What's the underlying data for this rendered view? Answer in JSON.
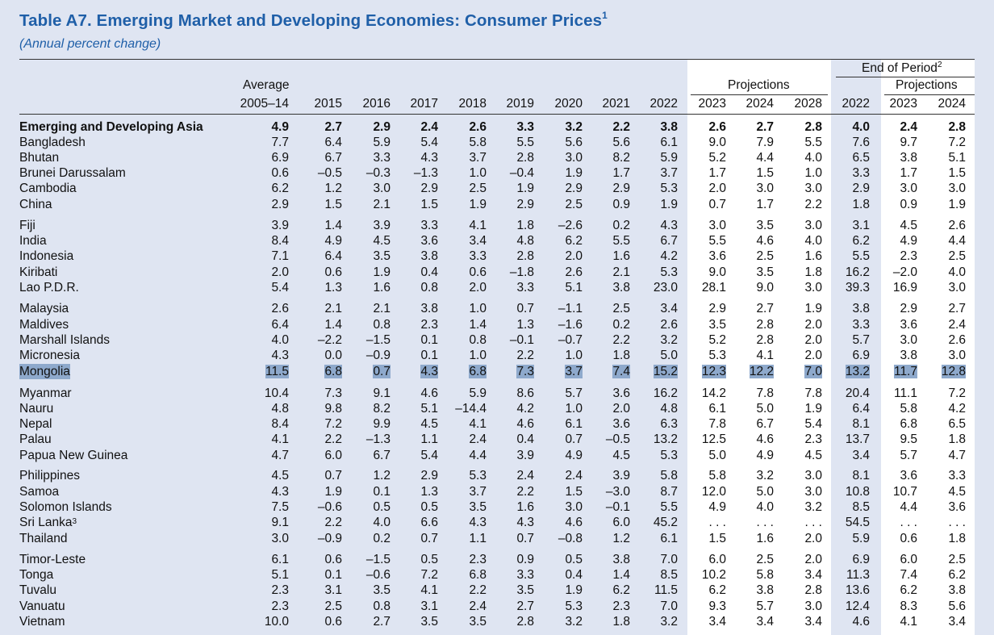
{
  "title": "Table A7. Emerging Market and Developing Economies: Consumer Prices",
  "title_footnote": "1",
  "subtitle": "(Annual percent change)",
  "header": {
    "end_of_period": "End of Period",
    "end_of_period_footnote": "2",
    "projections": "Projections",
    "average": "Average",
    "columns": [
      "2005–14",
      "2015",
      "2016",
      "2017",
      "2018",
      "2019",
      "2020",
      "2021",
      "2022",
      "2023",
      "2024",
      "2028",
      "2022",
      "2023",
      "2024"
    ]
  },
  "rows": [
    {
      "name": "Emerging and Developing Asia",
      "bold": true,
      "values": [
        "4.9",
        "2.7",
        "2.9",
        "2.4",
        "2.6",
        "3.3",
        "3.2",
        "2.2",
        "3.8",
        "2.6",
        "2.7",
        "2.8",
        "4.0",
        "2.4",
        "2.8"
      ]
    },
    {
      "name": "Bangladesh",
      "values": [
        "7.7",
        "6.4",
        "5.9",
        "5.4",
        "5.8",
        "5.5",
        "5.6",
        "5.6",
        "6.1",
        "9.0",
        "7.9",
        "5.5",
        "7.6",
        "9.7",
        "7.2"
      ]
    },
    {
      "name": "Bhutan",
      "values": [
        "6.9",
        "6.7",
        "3.3",
        "4.3",
        "3.7",
        "2.8",
        "3.0",
        "8.2",
        "5.9",
        "5.2",
        "4.4",
        "4.0",
        "6.5",
        "3.8",
        "5.1"
      ]
    },
    {
      "name": "Brunei Darussalam",
      "values": [
        "0.6",
        "–0.5",
        "–0.3",
        "–1.3",
        "1.0",
        "–0.4",
        "1.9",
        "1.7",
        "3.7",
        "1.7",
        "1.5",
        "1.0",
        "3.3",
        "1.7",
        "1.5"
      ]
    },
    {
      "name": "Cambodia",
      "values": [
        "6.2",
        "1.2",
        "3.0",
        "2.9",
        "2.5",
        "1.9",
        "2.9",
        "2.9",
        "5.3",
        "2.0",
        "3.0",
        "3.0",
        "2.9",
        "3.0",
        "3.0"
      ]
    },
    {
      "name": "China",
      "values": [
        "2.9",
        "1.5",
        "2.1",
        "1.5",
        "1.9",
        "2.9",
        "2.5",
        "0.9",
        "1.9",
        "0.7",
        "1.7",
        "2.2",
        "1.8",
        "0.9",
        "1.9"
      ]
    },
    {
      "name": "Fiji",
      "values": [
        "3.9",
        "1.4",
        "3.9",
        "3.3",
        "4.1",
        "1.8",
        "–2.6",
        "0.2",
        "4.3",
        "3.0",
        "3.5",
        "3.0",
        "3.1",
        "4.5",
        "2.6"
      ]
    },
    {
      "name": "India",
      "values": [
        "8.4",
        "4.9",
        "4.5",
        "3.6",
        "3.4",
        "4.8",
        "6.2",
        "5.5",
        "6.7",
        "5.5",
        "4.6",
        "4.0",
        "6.2",
        "4.9",
        "4.4"
      ]
    },
    {
      "name": "Indonesia",
      "values": [
        "7.1",
        "6.4",
        "3.5",
        "3.8",
        "3.3",
        "2.8",
        "2.0",
        "1.6",
        "4.2",
        "3.6",
        "2.5",
        "1.6",
        "5.5",
        "2.3",
        "2.5"
      ]
    },
    {
      "name": "Kiribati",
      "values": [
        "2.0",
        "0.6",
        "1.9",
        "0.4",
        "0.6",
        "–1.8",
        "2.6",
        "2.1",
        "5.3",
        "9.0",
        "3.5",
        "1.8",
        "16.2",
        "–2.0",
        "4.0"
      ]
    },
    {
      "name": "Lao P.D.R.",
      "values": [
        "5.4",
        "1.3",
        "1.6",
        "0.8",
        "2.0",
        "3.3",
        "5.1",
        "3.8",
        "23.0",
        "28.1",
        "9.0",
        "3.0",
        "39.3",
        "16.9",
        "3.0"
      ]
    },
    {
      "name": "Malaysia",
      "values": [
        "2.6",
        "2.1",
        "2.1",
        "3.8",
        "1.0",
        "0.7",
        "–1.1",
        "2.5",
        "3.4",
        "2.9",
        "2.7",
        "1.9",
        "3.8",
        "2.9",
        "2.7"
      ]
    },
    {
      "name": "Maldives",
      "values": [
        "6.4",
        "1.4",
        "0.8",
        "2.3",
        "1.4",
        "1.3",
        "–1.6",
        "0.2",
        "2.6",
        "3.5",
        "2.8",
        "2.0",
        "3.3",
        "3.6",
        "2.4"
      ]
    },
    {
      "name": "Marshall Islands",
      "values": [
        "4.0",
        "–2.2",
        "–1.5",
        "0.1",
        "0.8",
        "–0.1",
        "–0.7",
        "2.2",
        "3.2",
        "5.2",
        "2.8",
        "2.0",
        "5.7",
        "3.0",
        "2.6"
      ]
    },
    {
      "name": "Micronesia",
      "values": [
        "4.3",
        "0.0",
        "–0.9",
        "0.1",
        "1.0",
        "2.2",
        "1.0",
        "1.8",
        "5.0",
        "5.3",
        "4.1",
        "2.0",
        "6.9",
        "3.8",
        "3.0"
      ]
    },
    {
      "name": "Mongolia",
      "highlight": true,
      "values": [
        "11.5",
        "6.8",
        "0.7",
        "4.3",
        "6.8",
        "7.3",
        "3.7",
        "7.4",
        "15.2",
        "12.3",
        "12.2",
        "7.0",
        "13.2",
        "11.7",
        "12.8"
      ]
    },
    {
      "name": "Myanmar",
      "values": [
        "10.4",
        "7.3",
        "9.1",
        "4.6",
        "5.9",
        "8.6",
        "5.7",
        "3.6",
        "16.2",
        "14.2",
        "7.8",
        "7.8",
        "20.4",
        "11.1",
        "7.2"
      ]
    },
    {
      "name": "Nauru",
      "values": [
        "4.8",
        "9.8",
        "8.2",
        "5.1",
        "–14.4",
        "4.2",
        "1.0",
        "2.0",
        "4.8",
        "6.1",
        "5.0",
        "1.9",
        "6.4",
        "5.8",
        "4.2"
      ]
    },
    {
      "name": "Nepal",
      "values": [
        "8.4",
        "7.2",
        "9.9",
        "4.5",
        "4.1",
        "4.6",
        "6.1",
        "3.6",
        "6.3",
        "7.8",
        "6.7",
        "5.4",
        "8.1",
        "6.8",
        "6.5"
      ]
    },
    {
      "name": "Palau",
      "values": [
        "4.1",
        "2.2",
        "–1.3",
        "1.1",
        "2.4",
        "0.4",
        "0.7",
        "–0.5",
        "13.2",
        "12.5",
        "4.6",
        "2.3",
        "13.7",
        "9.5",
        "1.8"
      ]
    },
    {
      "name": "Papua New Guinea",
      "values": [
        "4.7",
        "6.0",
        "6.7",
        "5.4",
        "4.4",
        "3.9",
        "4.9",
        "4.5",
        "5.3",
        "5.0",
        "4.9",
        "4.5",
        "3.4",
        "5.7",
        "4.7"
      ]
    },
    {
      "name": "Philippines",
      "values": [
        "4.5",
        "0.7",
        "1.2",
        "2.9",
        "5.3",
        "2.4",
        "2.4",
        "3.9",
        "5.8",
        "5.8",
        "3.2",
        "3.0",
        "8.1",
        "3.6",
        "3.3"
      ]
    },
    {
      "name": "Samoa",
      "values": [
        "4.3",
        "1.9",
        "0.1",
        "1.3",
        "3.7",
        "2.2",
        "1.5",
        "–3.0",
        "8.7",
        "12.0",
        "5.0",
        "3.0",
        "10.8",
        "10.7",
        "4.5"
      ]
    },
    {
      "name": "Solomon Islands",
      "values": [
        "7.5",
        "–0.6",
        "0.5",
        "0.5",
        "3.5",
        "1.6",
        "3.0",
        "–0.1",
        "5.5",
        "4.9",
        "4.0",
        "3.2",
        "8.5",
        "4.4",
        "3.6"
      ]
    },
    {
      "name": "Sri Lanka",
      "footnote": "3",
      "values": [
        "9.1",
        "2.2",
        "4.0",
        "6.6",
        "4.3",
        "4.3",
        "4.6",
        "6.0",
        "45.2",
        ". . .",
        ". . .",
        ". . .",
        "54.5",
        ". . .",
        ". . ."
      ]
    },
    {
      "name": "Thailand",
      "values": [
        "3.0",
        "–0.9",
        "0.2",
        "0.7",
        "1.1",
        "0.7",
        "–0.8",
        "1.2",
        "6.1",
        "1.5",
        "1.6",
        "2.0",
        "5.9",
        "0.6",
        "1.8"
      ]
    },
    {
      "name": "Timor-Leste",
      "values": [
        "6.1",
        "0.6",
        "–1.5",
        "0.5",
        "2.3",
        "0.9",
        "0.5",
        "3.8",
        "7.0",
        "6.0",
        "2.5",
        "2.0",
        "6.9",
        "6.0",
        "2.5"
      ]
    },
    {
      "name": "Tonga",
      "values": [
        "5.1",
        "0.1",
        "–0.6",
        "7.2",
        "6.8",
        "3.3",
        "0.4",
        "1.4",
        "8.5",
        "10.2",
        "5.8",
        "3.4",
        "11.3",
        "7.4",
        "6.2"
      ]
    },
    {
      "name": "Tuvalu",
      "values": [
        "2.3",
        "3.1",
        "3.5",
        "4.1",
        "2.2",
        "3.5",
        "1.9",
        "6.2",
        "11.5",
        "6.2",
        "3.8",
        "2.8",
        "13.6",
        "6.2",
        "3.8"
      ]
    },
    {
      "name": "Vanuatu",
      "values": [
        "2.3",
        "2.5",
        "0.8",
        "3.1",
        "2.4",
        "2.7",
        "5.3",
        "2.3",
        "7.0",
        "9.3",
        "5.7",
        "3.0",
        "12.4",
        "8.3",
        "5.6"
      ]
    },
    {
      "name": "Vietnam",
      "values": [
        "10.0",
        "0.6",
        "2.7",
        "3.5",
        "3.5",
        "2.8",
        "3.2",
        "1.8",
        "3.2",
        "3.4",
        "3.4",
        "3.4",
        "4.6",
        "4.1",
        "3.4"
      ]
    }
  ]
}
